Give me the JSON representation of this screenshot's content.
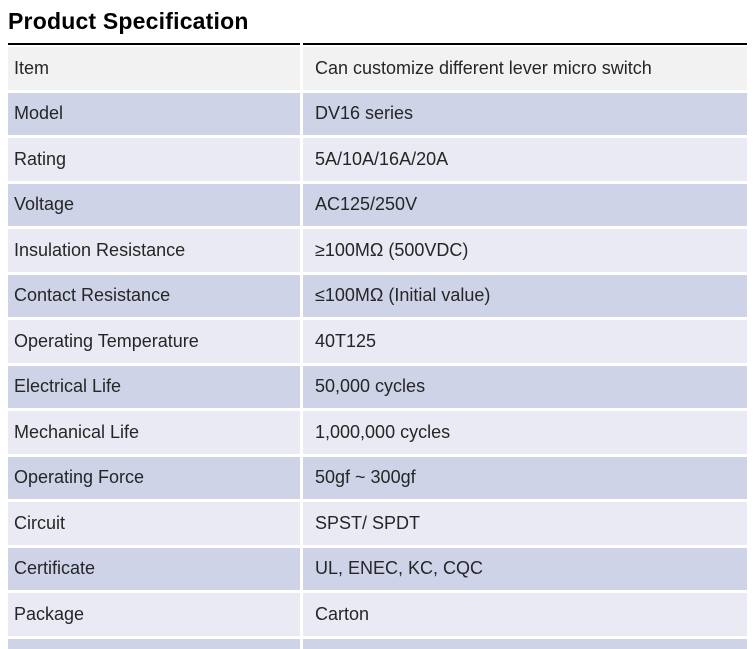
{
  "title": "Product Specification",
  "colors": {
    "rule": "#000000",
    "row_gray": "#f2f2f2",
    "row_medium": "#ced3e8",
    "row_light": "#e9eaf4",
    "text": "#262626"
  },
  "table": {
    "rows": [
      {
        "label": "Item",
        "value": "Can customize different lever micro switch",
        "shade": "gray"
      },
      {
        "label": "Model",
        "value": "DV16 series",
        "shade": "medium"
      },
      {
        "label": "Rating",
        "value": "5A/10A/16A/20A",
        "shade": "light"
      },
      {
        "label": "Voltage",
        "value": "AC125/250V",
        "shade": "medium"
      },
      {
        "label": "Insulation Resistance",
        "value": "≥100MΩ (500VDC)",
        "shade": "light"
      },
      {
        "label": "Contact Resistance",
        "value": "≤100MΩ (Initial value)",
        "shade": "medium"
      },
      {
        "label": "Operating Temperature",
        "value": "40T125",
        "shade": "light"
      },
      {
        "label": "Electrical Life",
        "value": "50,000 cycles",
        "shade": "medium"
      },
      {
        "label": "Mechanical Life",
        "value": "1,000,000 cycles",
        "shade": "light"
      },
      {
        "label": "Operating Force",
        "value": "50gf ~ 300gf",
        "shade": "medium"
      },
      {
        "label": "Circuit",
        "value": "SPST/ SPDT",
        "shade": "light"
      },
      {
        "label": "Certificate",
        "value": "UL, ENEC, KC, CQC",
        "shade": "medium"
      },
      {
        "label": "Package",
        "value": "Carton",
        "shade": "light"
      }
    ],
    "partial_row": {
      "shade": "medium"
    }
  }
}
